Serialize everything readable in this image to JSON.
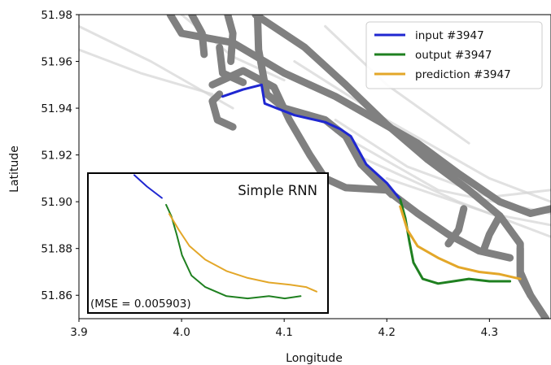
{
  "chart_data": {
    "type": "line",
    "title": "",
    "xlabel": "Longitude",
    "ylabel": "Latitude",
    "xlim": [
      3.9,
      4.36
    ],
    "ylim": [
      51.85,
      51.98
    ],
    "x_ticks": [
      "3.9",
      "4.0",
      "4.1",
      "4.2",
      "4.3"
    ],
    "y_ticks": [
      "51.86",
      "51.88",
      "51.90",
      "51.92",
      "51.94",
      "51.96",
      "51.98"
    ],
    "grid": false,
    "legend_position": "top-right",
    "background_tracks": {
      "color": "#808080",
      "faint_color": "#d4d4d4",
      "main": [
        [
          [
            3.989,
            51.98
          ],
          [
            4.0,
            51.972
          ],
          [
            4.05,
            51.968
          ],
          [
            4.1,
            51.955
          ],
          [
            4.15,
            51.945
          ],
          [
            4.19,
            51.935
          ],
          [
            4.23,
            51.925
          ],
          [
            4.27,
            51.912
          ],
          [
            4.31,
            51.9
          ],
          [
            4.34,
            51.895
          ],
          [
            4.36,
            51.897
          ]
        ],
        [
          [
            4.072,
            51.98
          ],
          [
            4.12,
            51.966
          ],
          [
            4.16,
            51.95
          ],
          [
            4.2,
            51.933
          ],
          [
            4.24,
            51.918
          ],
          [
            4.28,
            51.905
          ],
          [
            4.31,
            51.894
          ],
          [
            4.33,
            51.882
          ],
          [
            4.33,
            51.87
          ],
          [
            4.34,
            51.86
          ],
          [
            4.355,
            51.85
          ]
        ],
        [
          [
            4.03,
            51.95
          ],
          [
            4.06,
            51.956
          ],
          [
            4.09,
            51.949
          ],
          [
            4.105,
            51.935
          ],
          [
            4.125,
            51.92
          ],
          [
            4.14,
            51.91
          ],
          [
            4.16,
            51.906
          ],
          [
            4.2,
            51.905
          ],
          [
            4.23,
            51.895
          ],
          [
            4.26,
            51.886
          ],
          [
            4.29,
            51.879
          ],
          [
            4.32,
            51.876
          ]
        ],
        [
          [
            4.074,
            51.98
          ],
          [
            4.075,
            51.965
          ],
          [
            4.083,
            51.946
          ],
          [
            4.1,
            51.94
          ],
          [
            4.14,
            51.935
          ],
          [
            4.16,
            51.928
          ],
          [
            4.175,
            51.916
          ],
          [
            4.205,
            51.903
          ]
        ],
        [
          [
            4.01,
            51.98
          ],
          [
            4.02,
            51.972
          ],
          [
            4.022,
            51.963
          ]
        ],
        [
          [
            4.045,
            51.98
          ],
          [
            4.05,
            51.972
          ],
          [
            4.048,
            51.96
          ]
        ],
        [
          [
            4.037,
            51.966
          ],
          [
            4.04,
            51.955
          ],
          [
            4.06,
            51.951
          ]
        ],
        [
          [
            4.037,
            51.946
          ],
          [
            4.03,
            51.943
          ],
          [
            4.035,
            51.935
          ],
          [
            4.05,
            51.932
          ]
        ],
        [
          [
            4.26,
            51.882
          ],
          [
            4.27,
            51.888
          ],
          [
            4.275,
            51.897
          ]
        ],
        [
          [
            4.295,
            51.88
          ],
          [
            4.3,
            51.886
          ],
          [
            4.31,
            51.894
          ]
        ],
        [
          [
            4.33,
            51.88
          ],
          [
            4.33,
            51.868
          ],
          [
            4.34,
            51.86
          ]
        ]
      ],
      "faint": [
        [
          [
            3.9,
            51.975
          ],
          [
            3.97,
            51.96
          ],
          [
            4.05,
            51.94
          ]
        ],
        [
          [
            3.9,
            51.965
          ],
          [
            3.96,
            51.955
          ],
          [
            4.03,
            51.946
          ]
        ],
        [
          [
            4.15,
            51.935
          ],
          [
            4.22,
            51.915
          ],
          [
            4.3,
            51.902
          ],
          [
            4.36,
            51.905
          ]
        ],
        [
          [
            4.15,
            51.93
          ],
          [
            4.25,
            51.905
          ],
          [
            4.36,
            51.895
          ]
        ],
        [
          [
            4.17,
            51.92
          ],
          [
            4.27,
            51.9
          ],
          [
            4.36,
            51.885
          ]
        ],
        [
          [
            4.2,
            51.91
          ],
          [
            4.3,
            51.895
          ],
          [
            4.36,
            51.89
          ]
        ],
        [
          [
            4.11,
            51.96
          ],
          [
            4.2,
            51.935
          ],
          [
            4.3,
            51.91
          ],
          [
            4.36,
            51.9
          ]
        ],
        [
          [
            4.14,
            51.975
          ],
          [
            4.2,
            51.95
          ],
          [
            4.28,
            51.925
          ]
        ],
        [
          [
            4.0,
            51.98
          ],
          [
            4.05,
            51.962
          ],
          [
            4.1,
            51.952
          ]
        ]
      ]
    },
    "series": [
      {
        "name": "input #3947",
        "color": "#1f27d1",
        "points": [
          [
            4.04,
            51.945
          ],
          [
            4.06,
            51.948
          ],
          [
            4.078,
            51.95
          ],
          [
            4.081,
            51.942
          ],
          [
            4.11,
            51.937
          ],
          [
            4.14,
            51.934
          ],
          [
            4.155,
            51.931
          ],
          [
            4.165,
            51.928
          ],
          [
            4.18,
            51.916
          ],
          [
            4.2,
            51.908
          ],
          [
            4.213,
            51.901
          ]
        ]
      },
      {
        "name": "output #3947",
        "color": "#1f8020",
        "points": [
          [
            4.213,
            51.901
          ],
          [
            4.218,
            51.893
          ],
          [
            4.222,
            51.883
          ],
          [
            4.226,
            51.874
          ],
          [
            4.235,
            51.867
          ],
          [
            4.25,
            51.865
          ],
          [
            4.265,
            51.866
          ],
          [
            4.28,
            51.867
          ],
          [
            4.3,
            51.866
          ],
          [
            4.32,
            51.866
          ]
        ]
      },
      {
        "name": "prediction #3947",
        "color": "#e3a729",
        "points": [
          [
            4.213,
            51.898
          ],
          [
            4.22,
            51.888
          ],
          [
            4.23,
            51.881
          ],
          [
            4.25,
            51.876
          ],
          [
            4.27,
            51.872
          ],
          [
            4.29,
            51.87
          ],
          [
            4.31,
            51.869
          ],
          [
            4.33,
            51.867
          ]
        ]
      }
    ],
    "inset": {
      "title": "Simple RNN",
      "annotation": "(MSE = 0.005903)",
      "xlim": [
        3.92,
        4.145
      ],
      "ylim": [
        51.851,
        51.9115
      ],
      "series": [
        {
          "name": "input #3947",
          "points": [
            [
              3.963,
              51.911
            ],
            [
              3.975,
              51.906
            ],
            [
              3.989,
              51.901
            ]
          ]
        },
        {
          "name": "output #3947",
          "points": [
            [
              3.993,
              51.898
            ],
            [
              3.998,
              51.893
            ],
            [
              4.003,
              51.885
            ],
            [
              4.008,
              51.876
            ],
            [
              4.017,
              51.867
            ],
            [
              4.03,
              51.862
            ],
            [
              4.05,
              51.858
            ],
            [
              4.07,
              51.857
            ],
            [
              4.09,
              51.858
            ],
            [
              4.105,
              51.857
            ],
            [
              4.12,
              51.858
            ]
          ]
        },
        {
          "name": "prediction #3947",
          "points": [
            [
              3.996,
              51.894
            ],
            [
              4.005,
              51.887
            ],
            [
              4.015,
              51.88
            ],
            [
              4.03,
              51.874
            ],
            [
              4.05,
              51.869
            ],
            [
              4.07,
              51.866
            ],
            [
              4.09,
              51.864
            ],
            [
              4.11,
              51.863
            ],
            [
              4.125,
              51.862
            ],
            [
              4.135,
              51.86
            ]
          ]
        }
      ]
    }
  }
}
